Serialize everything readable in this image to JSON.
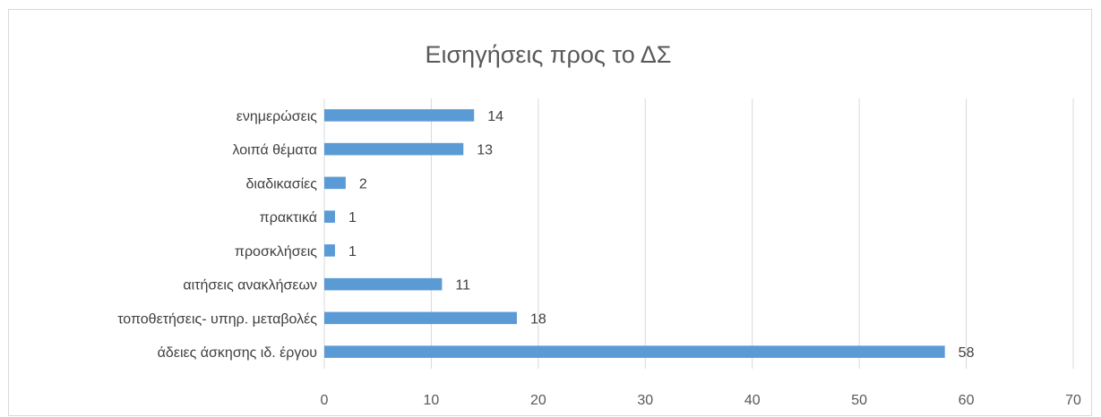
{
  "chart_data": {
    "type": "bar",
    "orientation": "horizontal",
    "title": "Εισηγήσεις προς το ΔΣ",
    "xlabel": "",
    "ylabel": "",
    "categories": [
      "ενημερώσεις",
      "λοιπά θέματα",
      "διαδικασίες",
      "πρακτικά",
      "προσκλήσεις",
      "αιτήσεις ανακλήσεων",
      "τοποθετήσεις- υπηρ. μεταβολές",
      "άδειες άσκησης ιδ. έργου"
    ],
    "values": [
      14,
      13,
      2,
      1,
      1,
      11,
      18,
      58
    ],
    "xlim": [
      0,
      70
    ],
    "ticks": [
      0,
      10,
      20,
      30,
      40,
      50,
      60,
      70
    ],
    "grid": true,
    "legend": "none",
    "bar_color": "#5B9BD5"
  }
}
